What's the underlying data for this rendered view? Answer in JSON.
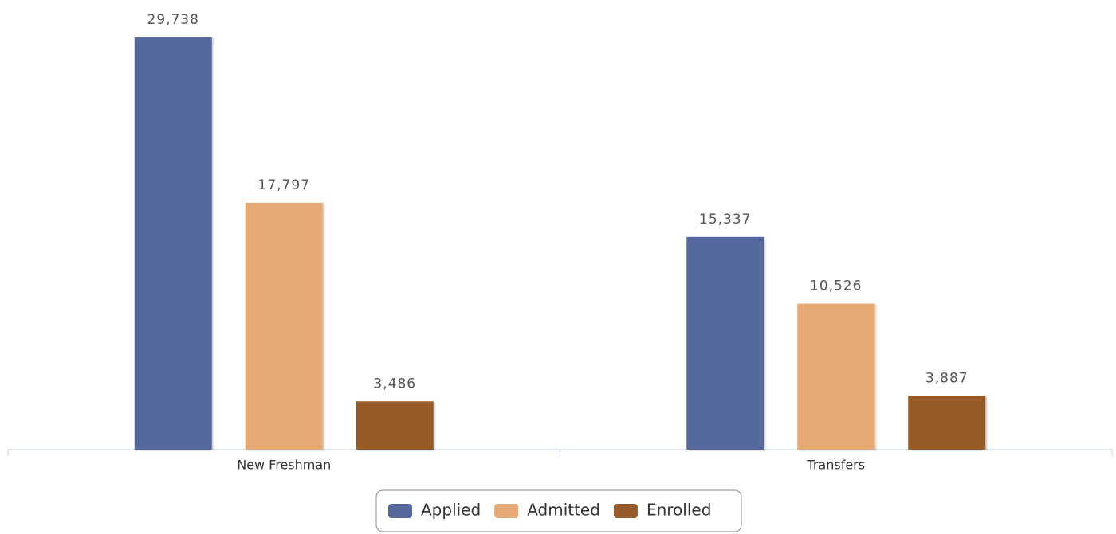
{
  "chart_data": {
    "type": "bar",
    "categories": [
      "New Freshman",
      "Transfers"
    ],
    "series": [
      {
        "name": "Applied",
        "color": "#57699c",
        "values": [
          29738,
          15337
        ],
        "value_labels": [
          "29,738",
          "15,337"
        ]
      },
      {
        "name": "Admitted",
        "color": "#e8aa74",
        "values": [
          17797,
          10526
        ],
        "value_labels": [
          "17,797",
          "10,526"
        ]
      },
      {
        "name": "Enrolled",
        "color": "#985a28",
        "values": [
          3486,
          3887
        ],
        "value_labels": [
          "3,486",
          "3,887"
        ]
      }
    ],
    "ylim": [
      0,
      30000
    ],
    "legend": "bottom"
  }
}
